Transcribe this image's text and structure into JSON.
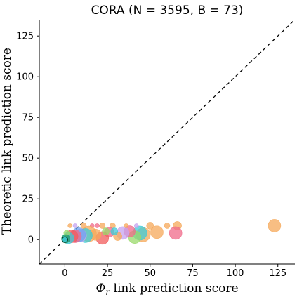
{
  "chart_data": {
    "type": "scatter",
    "title": "CORA (N = 3595, B = 73)",
    "xlabel_symbol": "Φ",
    "xlabel_sub": "r",
    "xlabel_rest": " link prediction score",
    "ylabel": "Theoretic link prediction score",
    "xlim": [
      -15,
      135
    ],
    "ylim": [
      -15,
      135
    ],
    "xticks": [
      0,
      25,
      50,
      75,
      100,
      125
    ],
    "yticks": [
      0,
      25,
      50,
      75,
      100,
      125
    ],
    "grid": false,
    "reference_line": "y = x (dashed)",
    "palette": [
      "#f5a85a",
      "#f06a8a",
      "#3ccbd8",
      "#9ad96b",
      "#c5a3f0",
      "#f25c5c",
      "#6fa3f0",
      "#1f9e6e"
    ],
    "points": [
      {
        "x": 123,
        "y": 8.5,
        "size": 9,
        "color": 0
      },
      {
        "x": 66,
        "y": 8.5,
        "size": 6,
        "color": 0
      },
      {
        "x": 65,
        "y": 4,
        "size": 9,
        "color": 1
      },
      {
        "x": 60,
        "y": 8.5,
        "size": 4,
        "color": 0
      },
      {
        "x": 54,
        "y": 4.5,
        "size": 9,
        "color": 0
      },
      {
        "x": 50,
        "y": 8.5,
        "size": 5,
        "color": 0
      },
      {
        "x": 46,
        "y": 3,
        "size": 10,
        "color": 0
      },
      {
        "x": 44,
        "y": 4,
        "size": 10,
        "color": 2
      },
      {
        "x": 41,
        "y": 1.5,
        "size": 9,
        "color": 3
      },
      {
        "x": 38,
        "y": 5,
        "size": 8,
        "color": 1
      },
      {
        "x": 34,
        "y": 4,
        "size": 9,
        "color": 4
      },
      {
        "x": 31,
        "y": 2,
        "size": 6,
        "color": 0
      },
      {
        "x": 28,
        "y": 8.5,
        "size": 4,
        "color": 0
      },
      {
        "x": 26,
        "y": 4.5,
        "size": 7,
        "color": 1
      },
      {
        "x": 22,
        "y": 1,
        "size": 9,
        "color": 5
      },
      {
        "x": 22,
        "y": 8.5,
        "size": 4,
        "color": 0
      },
      {
        "x": 18,
        "y": 3,
        "size": 8,
        "color": 0
      },
      {
        "x": 16,
        "y": 8.5,
        "size": 3,
        "color": 1
      },
      {
        "x": 14,
        "y": 3.5,
        "size": 11,
        "color": 0
      },
      {
        "x": 12,
        "y": 2.5,
        "size": 10,
        "color": 2
      },
      {
        "x": 11,
        "y": 8.5,
        "size": 4,
        "color": 0
      },
      {
        "x": 9,
        "y": 2.5,
        "size": 9,
        "color": 4
      },
      {
        "x": 8,
        "y": 3,
        "size": 10,
        "color": 6
      },
      {
        "x": 6,
        "y": 8.5,
        "size": 3,
        "color": 4
      },
      {
        "x": 6,
        "y": 2,
        "size": 9,
        "color": 1
      },
      {
        "x": 4,
        "y": 2,
        "size": 9,
        "color": 5
      },
      {
        "x": 3,
        "y": 8.5,
        "size": 3,
        "color": 0
      },
      {
        "x": 2,
        "y": 1,
        "size": 8,
        "color": 2
      },
      {
        "x": 1,
        "y": 4,
        "size": 4,
        "color": 3
      },
      {
        "x": 0.5,
        "y": 0.5,
        "size": 6,
        "color": 7
      },
      {
        "x": 0,
        "y": 0,
        "size": 3,
        "color": 2
      },
      {
        "x": 19,
        "y": 8.5,
        "size": 3,
        "color": 1
      },
      {
        "x": 36,
        "y": 8.5,
        "size": 3,
        "color": 0
      },
      {
        "x": 42,
        "y": 8.5,
        "size": 3,
        "color": 4
      },
      {
        "x": 29,
        "y": 5,
        "size": 5,
        "color": 2
      },
      {
        "x": 24,
        "y": 5,
        "size": 5,
        "color": 3
      }
    ]
  }
}
